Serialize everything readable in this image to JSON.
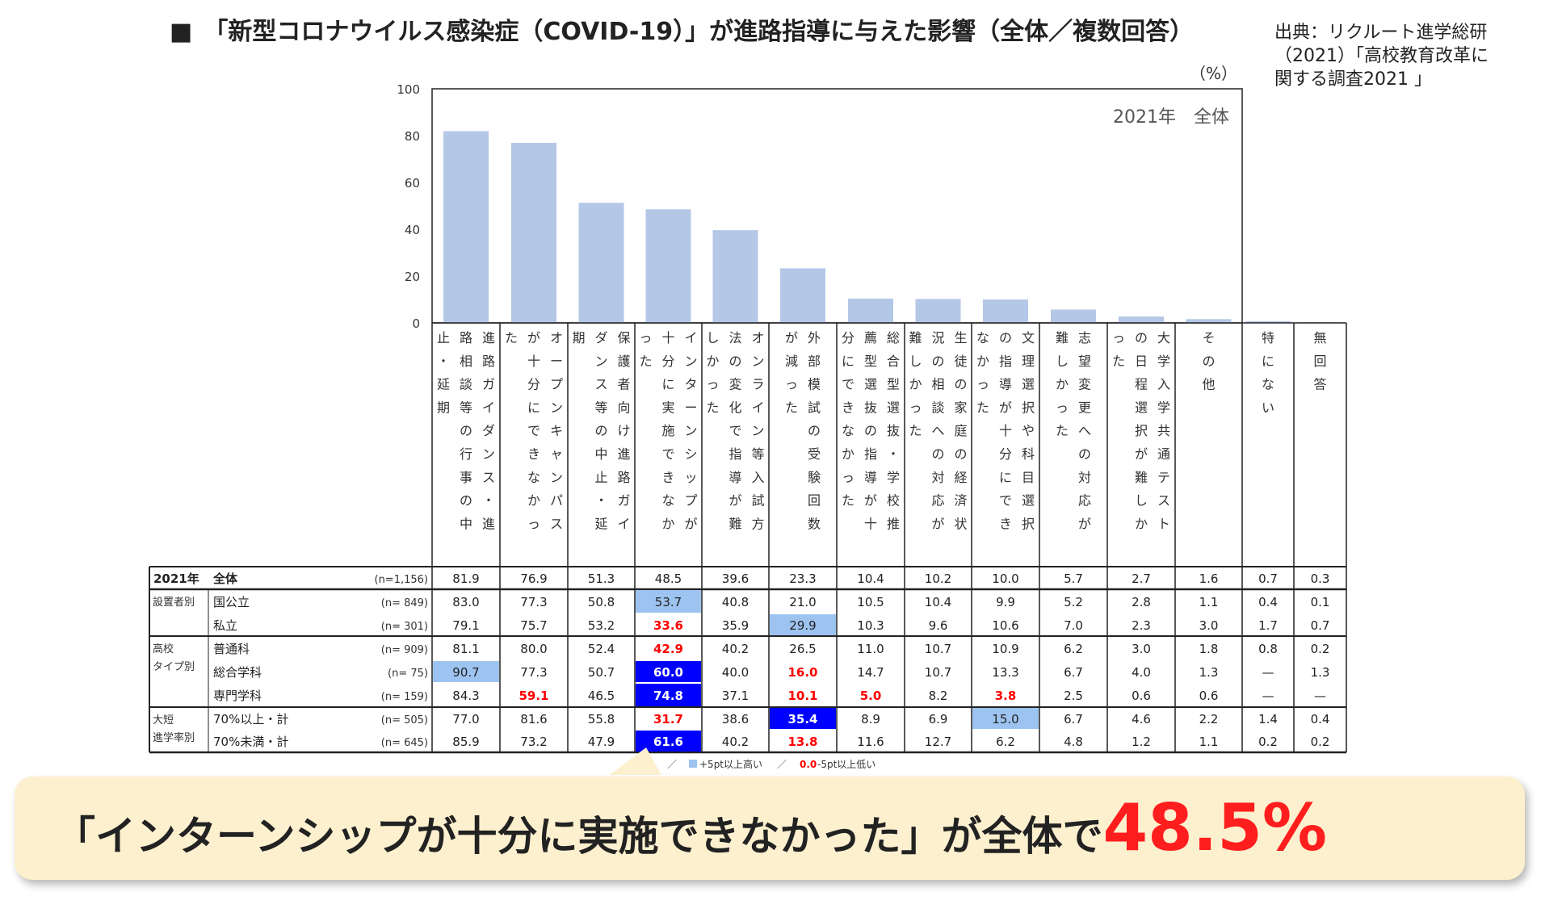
{
  "title": "「新型コロナウイルス感染症（COVID-19）」が進路指導に与えた影響（全体／複数回答）",
  "title_marker": "■",
  "source": [
    "出典：リクルート進学総研",
    "（2021）「高校教育改革に",
    "関する調査2021 」"
  ],
  "chart_data": {
    "type": "bar",
    "unit_label": "（%）",
    "inner_label": "2021年　全体",
    "ylim": [
      0,
      100
    ],
    "yticks": [
      0,
      20,
      40,
      60,
      80,
      100
    ],
    "grid": false,
    "categories": [
      "進路ガイダンス・進路相談等の行事の中止・延期",
      "オープンキャンパスが十分にできなかった",
      "保護者向け進路ガイダンス等の中止・延期",
      "インターンシップが十分に実施できなかった",
      "オンライン等入試方法の変化で指導が難しかった",
      "外部模試の受験回数が減った",
      "総合型選抜・学校推薦型選抜の指導が十分にできなかった",
      "生徒の家庭の経済状況の相談への対応が難しかった",
      "文理選択や科目選択の指導が十分にできなかった",
      "志望変更への対応が難しかった",
      "大学入学共通テストの日程選択が難しかった",
      "その他",
      "特にない",
      "無回答"
    ],
    "values": [
      81.9,
      76.9,
      51.3,
      48.5,
      39.6,
      23.3,
      10.4,
      10.2,
      10.0,
      5.7,
      2.7,
      1.6,
      0.7,
      0.3
    ],
    "bar_color": "#b4c7e7",
    "table": {
      "groups": [
        {
          "label": [
            "設置者別"
          ],
          "rows": [
            {
              "name": "国公立",
              "n": "(n=  849)",
              "values": [
                "83.0",
                "77.3",
                "50.8",
                "53.7",
                "40.8",
                "21.0",
                "10.5",
                "10.4",
                "9.9",
                "5.2",
                "2.8",
                "1.1",
                "0.4",
                "0.1"
              ],
              "hl": {
                "3": "up"
              }
            },
            {
              "name": "私立",
              "n": "(n=  301)",
              "values": [
                "79.1",
                "75.7",
                "53.2",
                "33.6",
                "35.9",
                "29.9",
                "10.3",
                "9.6",
                "10.6",
                "7.0",
                "2.3",
                "3.0",
                "1.7",
                "0.7"
              ],
              "hl": {
                "3": "down",
                "5": "up"
              }
            }
          ]
        },
        {
          "label": [
            "高校",
            "タイプ別"
          ],
          "rows": [
            {
              "name": "普通科",
              "n": "(n=  909)",
              "values": [
                "81.1",
                "80.0",
                "52.4",
                "42.9",
                "40.2",
                "26.5",
                "11.0",
                "10.7",
                "10.9",
                "6.2",
                "3.0",
                "1.8",
                "0.8",
                "0.2"
              ],
              "hl": {
                "3": "down"
              }
            },
            {
              "name": "総合学科",
              "n": "(n=    75)",
              "values": [
                "90.7",
                "77.3",
                "50.7",
                "60.0",
                "40.0",
                "16.0",
                "14.7",
                "10.7",
                "13.3",
                "6.7",
                "4.0",
                "1.3",
                "—",
                "1.3"
              ],
              "hl": {
                "0": "up",
                "3": "upstrong",
                "5": "down"
              }
            },
            {
              "name": "専門学科",
              "n": "(n=  159)",
              "values": [
                "84.3",
                "59.1",
                "46.5",
                "74.8",
                "37.1",
                "10.1",
                "5.0",
                "8.2",
                "3.8",
                "2.5",
                "0.6",
                "0.6",
                "—",
                "—"
              ],
              "hl": {
                "1": "down",
                "3": "upstrong",
                "5": "down",
                "6": "down",
                "8": "down"
              }
            }
          ]
        },
        {
          "label": [
            "大短",
            "進学率別"
          ],
          "rows": [
            {
              "name": "70%以上・計",
              "n": "(n=  505)",
              "values": [
                "77.0",
                "81.6",
                "55.8",
                "31.7",
                "38.6",
                "35.4",
                "8.9",
                "6.9",
                "15.0",
                "6.7",
                "4.6",
                "2.2",
                "1.4",
                "0.4"
              ],
              "hl": {
                "3": "down",
                "5": "upstrong",
                "8": "up"
              }
            },
            {
              "name": "70%未満・計",
              "n": "(n=  645)",
              "values": [
                "85.9",
                "73.2",
                "47.9",
                "61.6",
                "40.2",
                "13.8",
                "11.6",
                "12.7",
                "6.2",
                "4.8",
                "1.2",
                "1.1",
                "0.2",
                "0.2"
              ],
              "hl": {
                "3": "upstrong",
                "5": "down"
              }
            }
          ]
        }
      ],
      "total_row": {
        "year": "2021年",
        "name": "全体",
        "n": "(n=1,156)",
        "values": [
          "81.9",
          "76.9",
          "51.3",
          "48.5",
          "39.6",
          "23.3",
          "10.4",
          "10.2",
          "10.0",
          "5.7",
          "2.7",
          "1.6",
          "0.7",
          "0.3"
        ]
      },
      "legend": {
        "up_text": "+5pt以上高い",
        "down_prefix": "0.0",
        "down_text": "-5pt以上低い"
      },
      "colors": {
        "up": "#9dc3f0",
        "upstrong": "#0000ff",
        "down_text": "#ff0000"
      }
    }
  },
  "callout": {
    "text": "「インターンシップが十分に実施できなかった」が全体で",
    "value": "48.5%"
  }
}
